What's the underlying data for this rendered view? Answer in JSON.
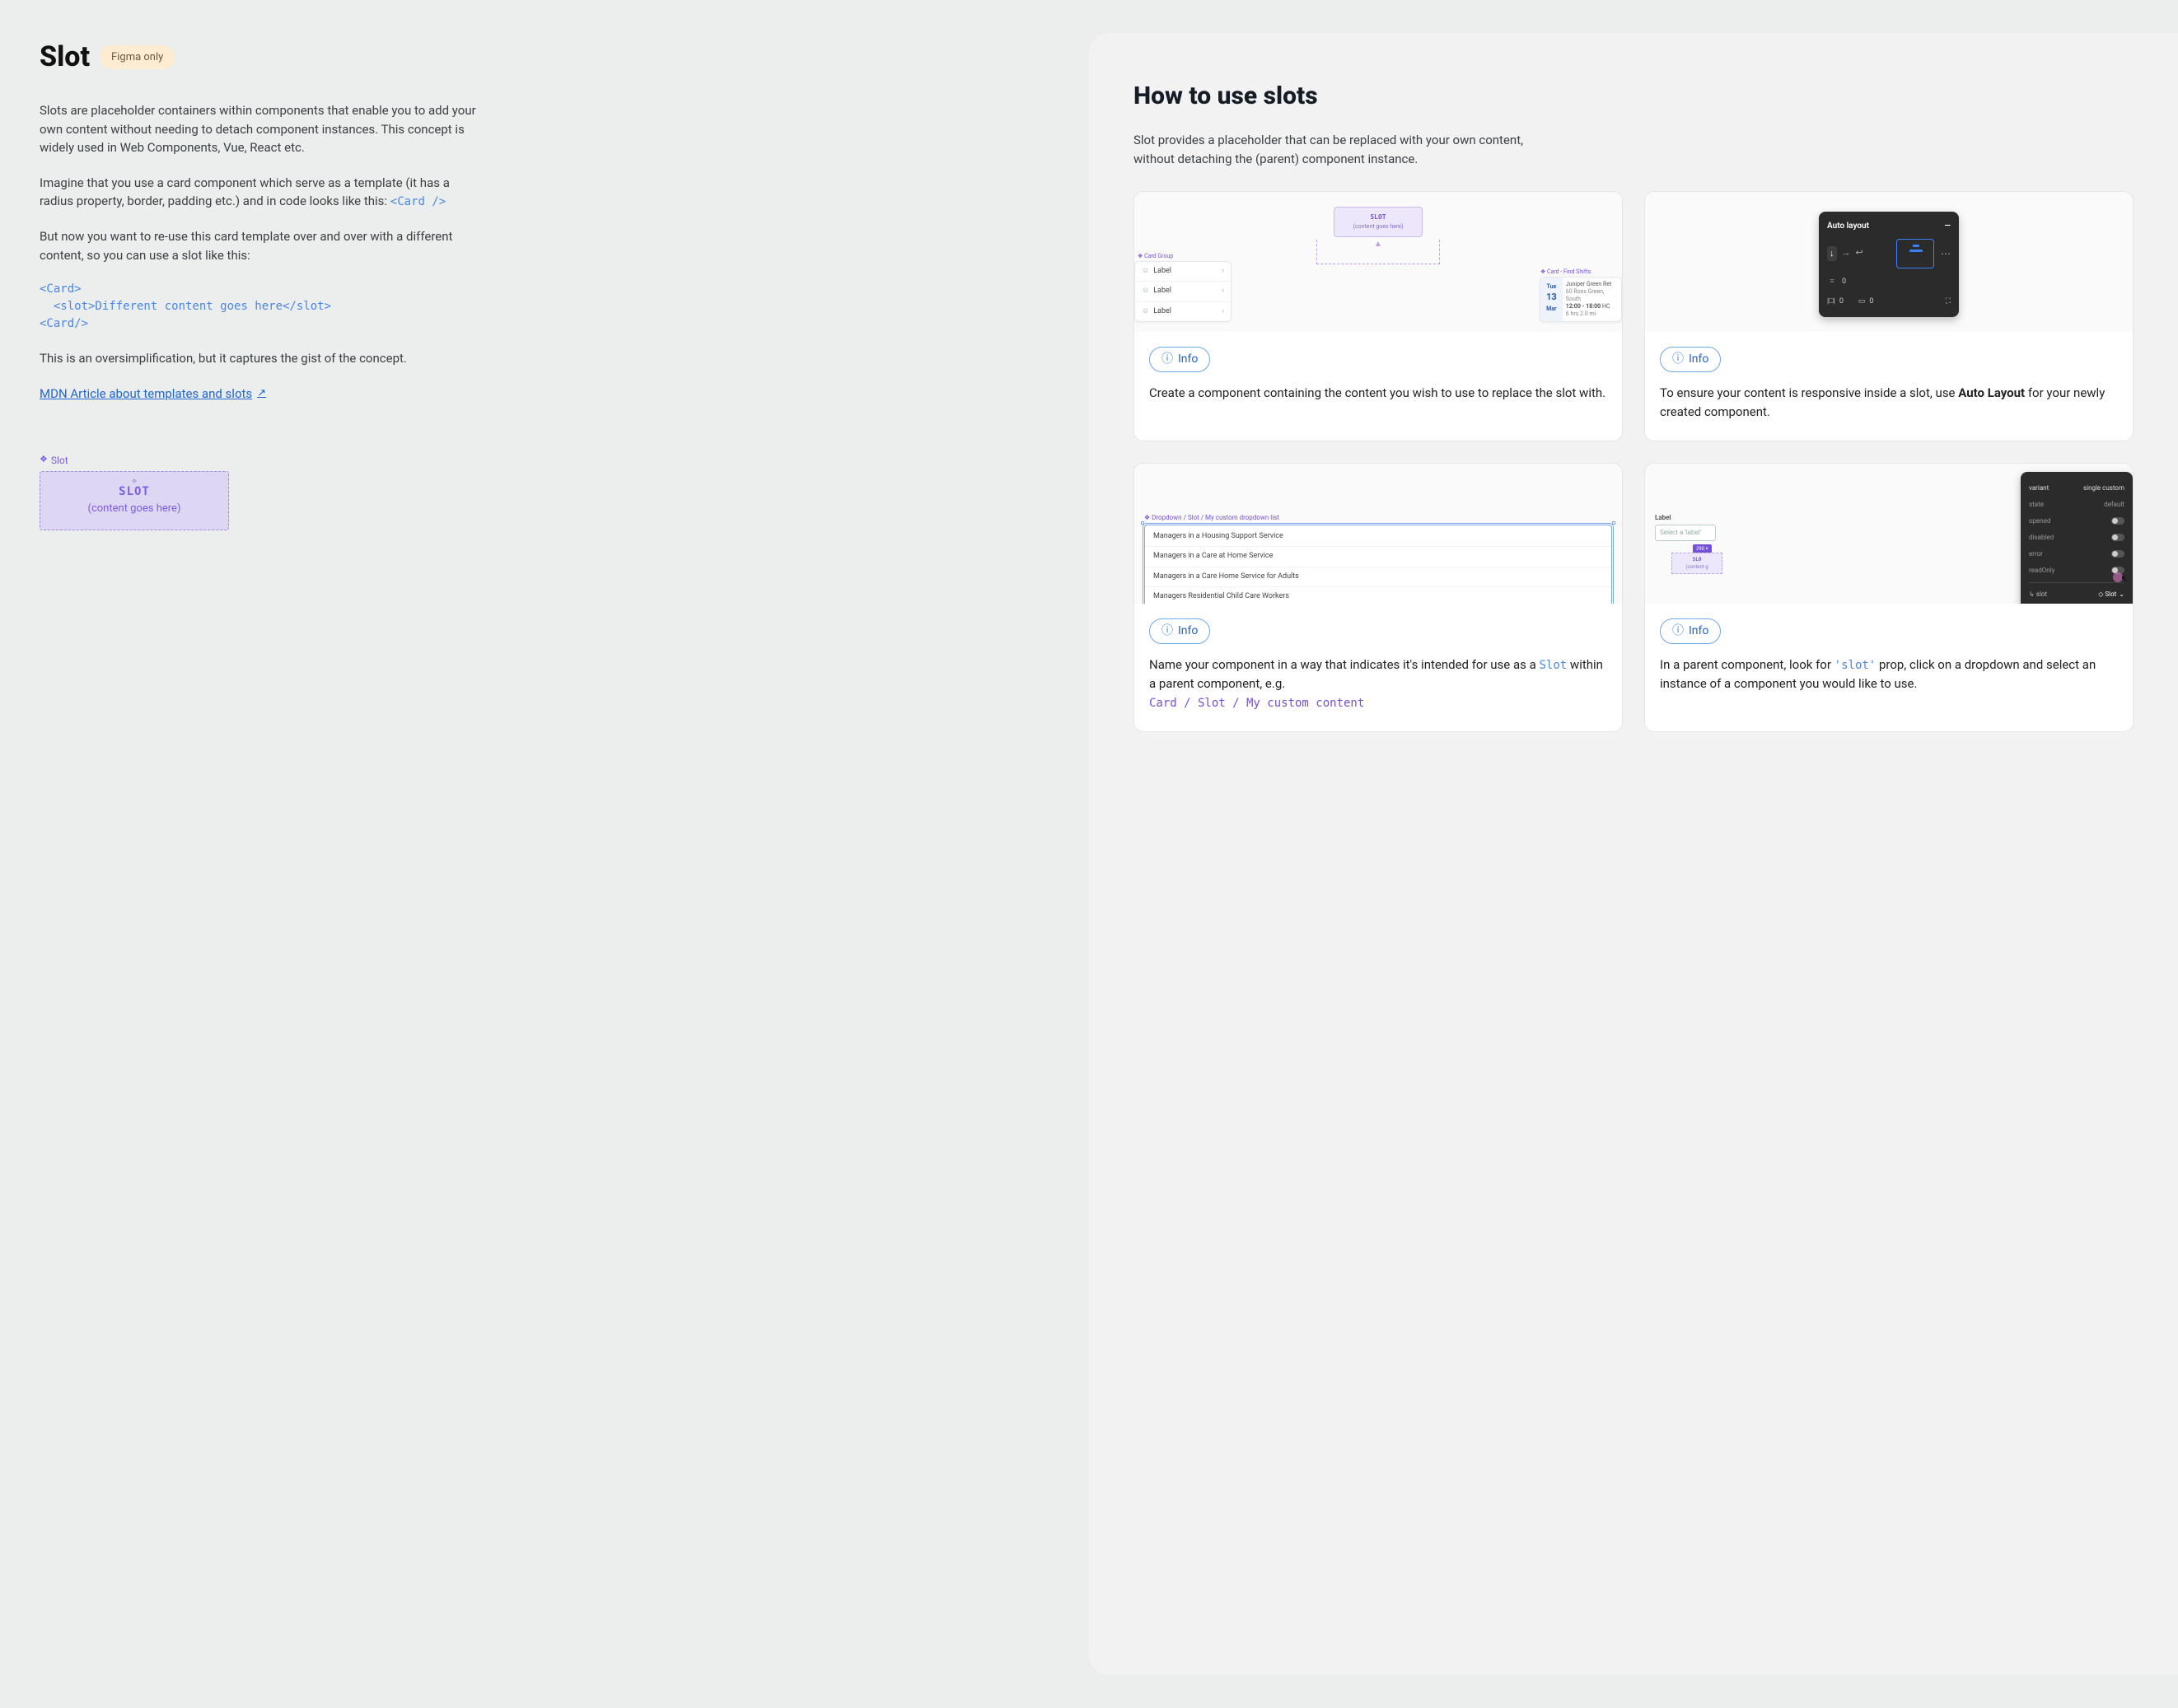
{
  "left": {
    "title": "Slot",
    "badge": "Figma only",
    "p1": "Slots are placeholder containers within components that enable you to add your own content without needing to detach component instances. This concept is widely used in Web Components, Vue, React etc.",
    "p2_a": "Imagine that you use a card component which serve as a template (it has a radius property, border, padding etc.) and in code looks like this: ",
    "p2_code": "<Card />",
    "p3": "But now you want to re-use this card template over and over with a different content, so you can use a slot like this:",
    "code_block": "<Card>\n  <slot>Different content goes here</slot>\n<Card/>",
    "p4": "This is an oversimplification, but it captures the gist of the concept.",
    "mdn_link": "MDN Article about templates and slots",
    "slot_demo": {
      "label": "Slot",
      "line1": "SLOT",
      "line2": "(content goes here)"
    }
  },
  "right": {
    "heading": "How to use slots",
    "lead": "Slot provides a placeholder that can be replaced with your own content, without detaching the (parent) component instance.",
    "info_label": "Info",
    "cards": [
      {
        "text_a": "Create a component containing the content you wish to use to replace the slot with."
      },
      {
        "text_a": "To ensure your content is responsive inside a slot, use ",
        "bold": "Auto Layout",
        "text_b": " for your newly created component."
      },
      {
        "text_a": "Name your component in a way that indicates it's intended for use as a ",
        "code1": "Slot",
        "text_b": " within a parent component, e.g. ",
        "code2": "Card / Slot / My custom content"
      },
      {
        "text_a": "In a parent component, look for ",
        "code1": "'slot'",
        "text_b": " prop, click on a dropdown and select an instance of a component you would like to use."
      }
    ],
    "thumb1": {
      "mini_slot_t1": "SLOT",
      "mini_slot_t2": "(content goes here)",
      "cardgroup_tag": "❖ Card Group",
      "row_label": "Label",
      "shift_tag": "❖ Card - Find Shifts",
      "shift_day": "Tue",
      "shift_num": "13",
      "shift_mon": "Mar",
      "shift_name": "Juniper Green Ret",
      "shift_addr": "60 Ross Green, South",
      "shift_time": "12:00 - 18:00",
      "shift_role": "HC",
      "shift_meta": "6 hrs   2.0 mi"
    },
    "thumb2": {
      "title": "Auto layout",
      "zero": "0"
    },
    "thumb3": {
      "tag": "❖ Dropdown / Slot / My custom dropdown list",
      "opts": [
        "Managers in a Housing Support Service",
        "Managers in a Care at Home Service",
        "Managers in a Care Home Service for Adults",
        "Managers Residential Child Care Workers"
      ]
    },
    "thumb4": {
      "field_label": "Label",
      "field_placeholder": "Select a 'label'",
      "badge": "290 ×",
      "mini_a": "SLO",
      "mini_b": "(content g",
      "rows": [
        [
          "variant",
          "single custom"
        ],
        [
          "state",
          "default"
        ],
        [
          "opened",
          ""
        ],
        [
          "disabled",
          ""
        ],
        [
          "error",
          ""
        ],
        [
          "readOnly",
          ""
        ]
      ],
      "slot_key": "↳ slot",
      "slot_val": "◇ Slot"
    }
  },
  "colors": {
    "page_bg": "#eceded",
    "right_bg": "#f2f2f3",
    "card_border": "#e4e6ea",
    "accent_purple": "#7550d9",
    "accent_blue": "#1e66d0",
    "code_blue": "#4a86e8",
    "badge_bg": "#fdecd2"
  }
}
